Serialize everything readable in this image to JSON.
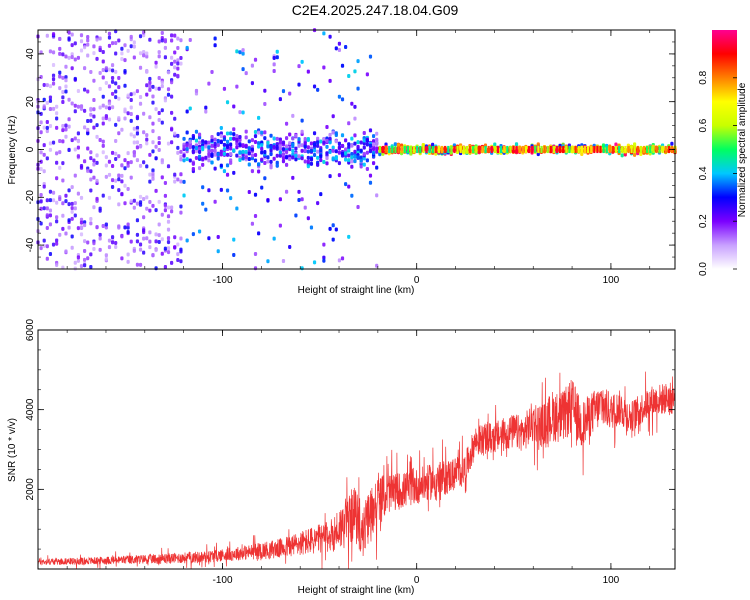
{
  "title": "C2E4.2025.247.18.04.G09",
  "chart_data": [
    {
      "type": "heatmap",
      "xlabel": "Height of straight line (km)",
      "ylabel": "Frequency (Hz)",
      "xlim": [
        -195,
        133
      ],
      "ylim": [
        -50,
        50
      ],
      "xticks": [
        -100,
        0,
        100
      ],
      "yticks": [
        -40,
        -20,
        0,
        20,
        40
      ],
      "colorbar": {
        "label": "Normalized spectral amplitude",
        "range": [
          0,
          1
        ],
        "ticks": [
          "0.0",
          "0.2",
          "0.4",
          "0.6",
          "0.8"
        ],
        "tick_values": [
          0,
          0.2,
          0.4,
          0.6,
          0.8
        ],
        "colors": [
          "#ffffff",
          "#c8a0ff",
          "#7b00ff",
          "#0000ff",
          "#00c8ff",
          "#00ff60",
          "#c8ff00",
          "#ffff00",
          "#ff8000",
          "#ff0000",
          "#ff0090"
        ]
      },
      "description_regions": [
        {
          "x_range": [
            -195,
            -120
          ],
          "freq_spread": 50,
          "amplitude": 0.2
        },
        {
          "x_range": [
            -120,
            -20
          ],
          "freq_spread": 8,
          "amplitude": 0.35
        },
        {
          "x_range": [
            -20,
            133
          ],
          "freq_spread": 2,
          "amplitude": 0.85
        }
      ]
    },
    {
      "type": "line",
      "xlabel": "Height of straight line (km)",
      "ylabel": "SNR (10 * v/v)",
      "xlim": [
        -195,
        133
      ],
      "ylim": [
        0,
        6000
      ],
      "xticks": [
        -100,
        0,
        100
      ],
      "yticks": [
        2000,
        4000,
        6000
      ],
      "color": "#ee3333",
      "series": [
        {
          "x": [
            -195,
            -170,
            -150,
            -130,
            -110,
            -90,
            -70,
            -55,
            -45,
            -38,
            -32,
            -28,
            -22,
            -15,
            -5,
            5,
            15,
            25,
            30,
            40,
            50,
            55,
            60,
            65,
            70,
            75,
            80,
            85,
            90,
            95,
            100,
            105,
            110,
            120,
            130,
            133
          ],
          "y": [
            180,
            200,
            230,
            260,
            300,
            400,
            520,
            700,
            800,
            1100,
            1400,
            900,
            1600,
            1900,
            2000,
            2150,
            2300,
            2500,
            3200,
            3300,
            3450,
            3400,
            3700,
            3600,
            3850,
            3800,
            4100,
            3600,
            3900,
            4100,
            3950,
            4050,
            3800,
            4200,
            4300,
            4250
          ],
          "amplitude": [
            80,
            90,
            110,
            130,
            150,
            180,
            250,
            350,
            400,
            600,
            700,
            600,
            700,
            500,
            450,
            450,
            450,
            400,
            400,
            400,
            450,
            450,
            550,
            550,
            650,
            650,
            700,
            600,
            550,
            550,
            450,
            450,
            400,
            400,
            400,
            400
          ]
        }
      ]
    }
  ]
}
